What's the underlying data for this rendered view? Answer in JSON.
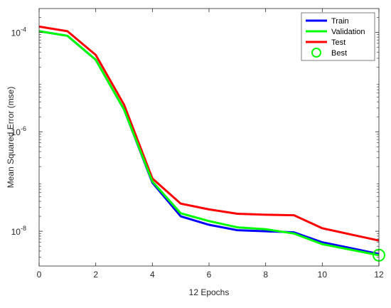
{
  "chart_data": {
    "type": "line",
    "xlabel": "12 Epochs",
    "ylabel": "Mean Squared Error (mse)",
    "xlim": [
      0,
      12
    ],
    "ylim": [
      2e-09,
      0.0003
    ],
    "yscale": "log",
    "grid": false,
    "legend_position": "top-right",
    "x_ticks": [
      "0",
      "2",
      "4",
      "6",
      "8",
      "10",
      "12"
    ],
    "y_ticks": [
      {
        "base": "10",
        "exp": "-8",
        "value": 1e-08
      },
      {
        "base": "10",
        "exp": "-6",
        "value": 1e-06
      },
      {
        "base": "10",
        "exp": "-4",
        "value": 0.0001
      }
    ],
    "x": [
      0,
      1,
      2,
      3,
      4,
      5,
      6,
      7,
      8,
      9,
      10,
      12
    ],
    "series": [
      {
        "name": "Train",
        "color": "#0000ff",
        "values": [
          0.000105,
          8.5e-05,
          2.8e-05,
          2.8e-06,
          9.5e-08,
          2e-08,
          1.35e-08,
          1.05e-08,
          1e-08,
          9.5e-09,
          6e-09,
          3.5e-09
        ]
      },
      {
        "name": "Validation",
        "color": "#00ff00",
        "values": [
          0.000105,
          8.5e-05,
          2.8e-05,
          2.8e-06,
          1e-07,
          2.3e-08,
          1.6e-08,
          1.2e-08,
          1.1e-08,
          9e-09,
          5.5e-09,
          3.3e-09
        ]
      },
      {
        "name": "Test",
        "color": "#ff0000",
        "values": [
          0.00013,
          0.000105,
          3.5e-05,
          3.5e-06,
          1.15e-07,
          3.6e-08,
          2.75e-08,
          2.25e-08,
          2.15e-08,
          2.1e-08,
          1.15e-08,
          6.5e-09
        ]
      }
    ],
    "best": {
      "name": "Best",
      "color": "#00ff00",
      "x": 12,
      "y": 3.3e-09
    }
  }
}
